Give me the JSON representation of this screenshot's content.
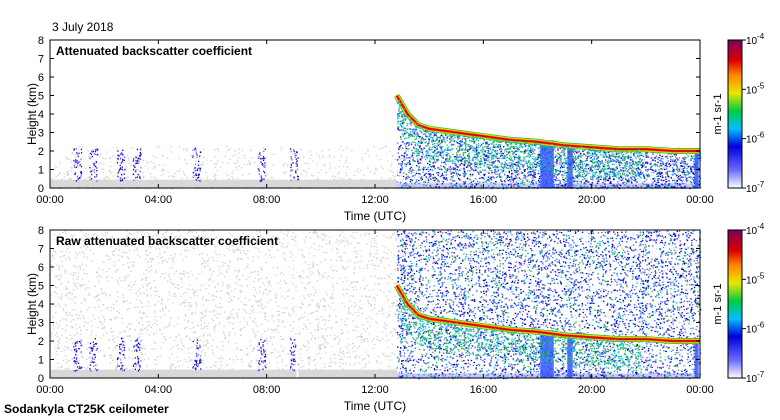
{
  "date": "3 July 2018",
  "footer": "Sodankyla CT25K ceilometer",
  "chart_data": [
    {
      "type": "heatmap",
      "title": "Attenuated backscatter coefficient",
      "xlabel": "Time (UTC)",
      "ylabel": "Height (km)",
      "xlim": [
        0,
        24
      ],
      "ylim": [
        0,
        8
      ],
      "xticks": [
        "00:00",
        "04:00",
        "08:00",
        "12:00",
        "16:00",
        "20:00",
        "00:00"
      ],
      "yticks": [
        "0",
        "1",
        "2",
        "3",
        "4",
        "5",
        "6",
        "7",
        "8"
      ],
      "colorbar": {
        "scale": "log",
        "min": 1e-07,
        "max": 0.0001,
        "ticks": [
          "10-7",
          "10-6",
          "10-5",
          "10-4"
        ],
        "unit": "m-1 sr-1"
      },
      "cloud_layer": {
        "x": [
          12.8,
          13.2,
          13.6,
          14,
          15,
          16,
          17,
          18,
          19,
          20,
          21,
          22,
          23,
          24
        ],
        "y": [
          5.0,
          4.0,
          3.4,
          3.2,
          3.0,
          2.8,
          2.6,
          2.5,
          2.3,
          2.2,
          2.1,
          2.1,
          2.0,
          2.0
        ]
      }
    },
    {
      "type": "heatmap",
      "title": "Raw attenuated backscatter coefficient",
      "xlabel": "Time (UTC)",
      "ylabel": "Height (km)",
      "xlim": [
        0,
        24
      ],
      "ylim": [
        0,
        8
      ],
      "xticks": [
        "00:00",
        "04:00",
        "08:00",
        "12:00",
        "16:00",
        "20:00",
        "00:00"
      ],
      "yticks": [
        "0",
        "1",
        "2",
        "3",
        "4",
        "5",
        "6",
        "7",
        "8"
      ],
      "colorbar": {
        "scale": "log",
        "min": 1e-07,
        "max": 0.0001,
        "ticks": [
          "10-7",
          "10-6",
          "10-5",
          "10-4"
        ],
        "unit": "m-1 sr-1"
      },
      "cloud_layer": {
        "x": [
          12.8,
          13.2,
          13.6,
          14,
          15,
          16,
          17,
          18,
          19,
          20,
          21,
          22,
          23,
          24
        ],
        "y": [
          5.0,
          4.0,
          3.4,
          3.2,
          3.0,
          2.8,
          2.6,
          2.5,
          2.3,
          2.2,
          2.1,
          2.1,
          2.0,
          2.0
        ]
      }
    }
  ]
}
